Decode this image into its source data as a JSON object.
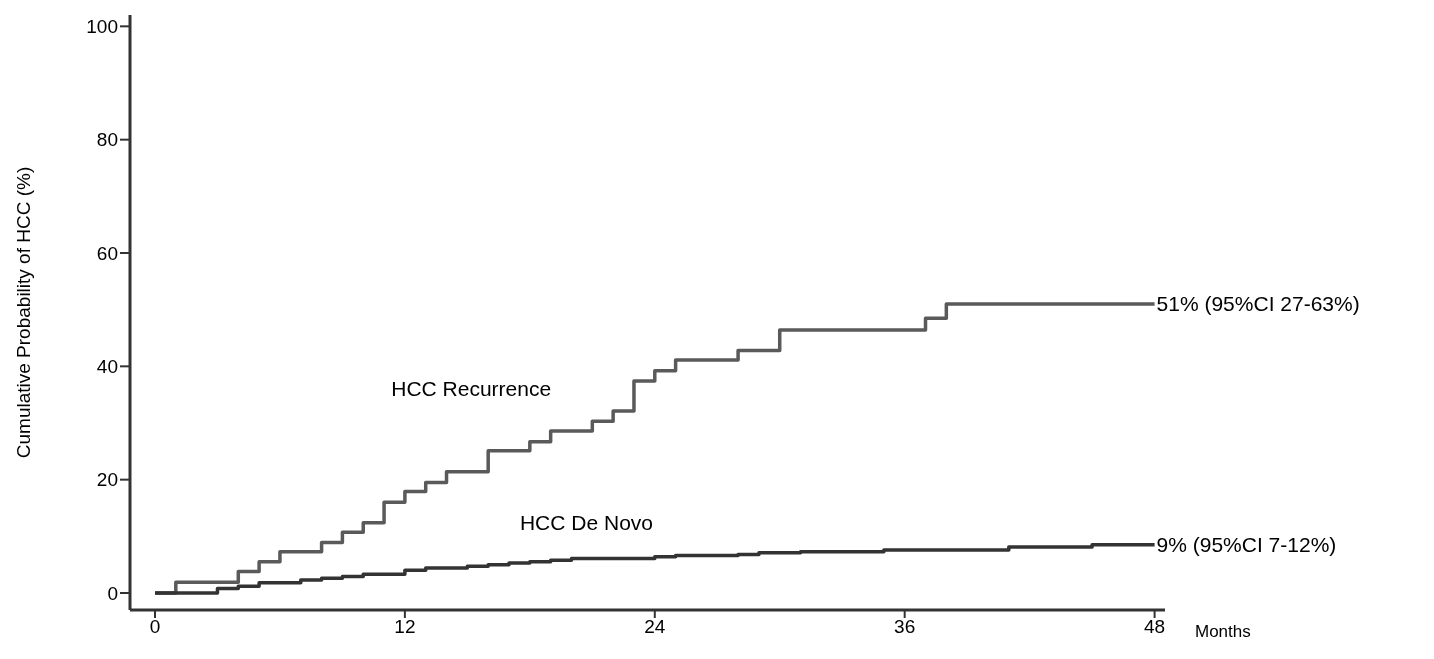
{
  "chart_data": {
    "type": "step",
    "xlabel": "Months",
    "ylabel": "Cumulative Probability of HCC (%)",
    "xlim": [
      -1.2,
      48.5
    ],
    "xticks": [
      0,
      12,
      24,
      36,
      48
    ],
    "ylim": [
      -3,
      102
    ],
    "yticks": [
      0,
      20,
      40,
      60,
      80,
      100
    ],
    "grid": false,
    "legend": false,
    "line_style": "solid",
    "marker": "none",
    "series": [
      {
        "name": "HCC Recurrence",
        "color": "#5a5a5a",
        "x": [
          0,
          1,
          4,
          5,
          6,
          8,
          9,
          10,
          11,
          12,
          13,
          14,
          16,
          18,
          19,
          21,
          22,
          23,
          24,
          25,
          28,
          30,
          37,
          38,
          48
        ],
        "values": [
          0,
          1.9,
          3.8,
          5.5,
          7.3,
          8.9,
          10.7,
          12.4,
          16.0,
          17.9,
          19.5,
          21.4,
          25.1,
          26.7,
          28.6,
          30.3,
          32.1,
          37.4,
          39.2,
          41.1,
          42.8,
          46.4,
          48.5,
          51,
          51
        ]
      },
      {
        "name": "HCC De Novo",
        "color": "#333333",
        "x": [
          0,
          3,
          4,
          5,
          7,
          8,
          9,
          10,
          12,
          13,
          15,
          16,
          17,
          18,
          19,
          20,
          24,
          25,
          28,
          29,
          31,
          35,
          41,
          45,
          48
        ],
        "values": [
          0,
          0.8,
          1.2,
          1.8,
          2.3,
          2.6,
          2.9,
          3.3,
          4.0,
          4.4,
          4.7,
          5.0,
          5.3,
          5.5,
          5.8,
          6.1,
          6.4,
          6.6,
          6.8,
          7.1,
          7.3,
          7.6,
          8.1,
          8.5,
          8.5
        ]
      }
    ],
    "annotations": [
      {
        "text": "51% (95%CI 27-63%)",
        "x": 48,
        "y": 51
      },
      {
        "text": "9% (95%CI 7-12%)",
        "x": 48,
        "y": 8.5
      }
    ]
  }
}
